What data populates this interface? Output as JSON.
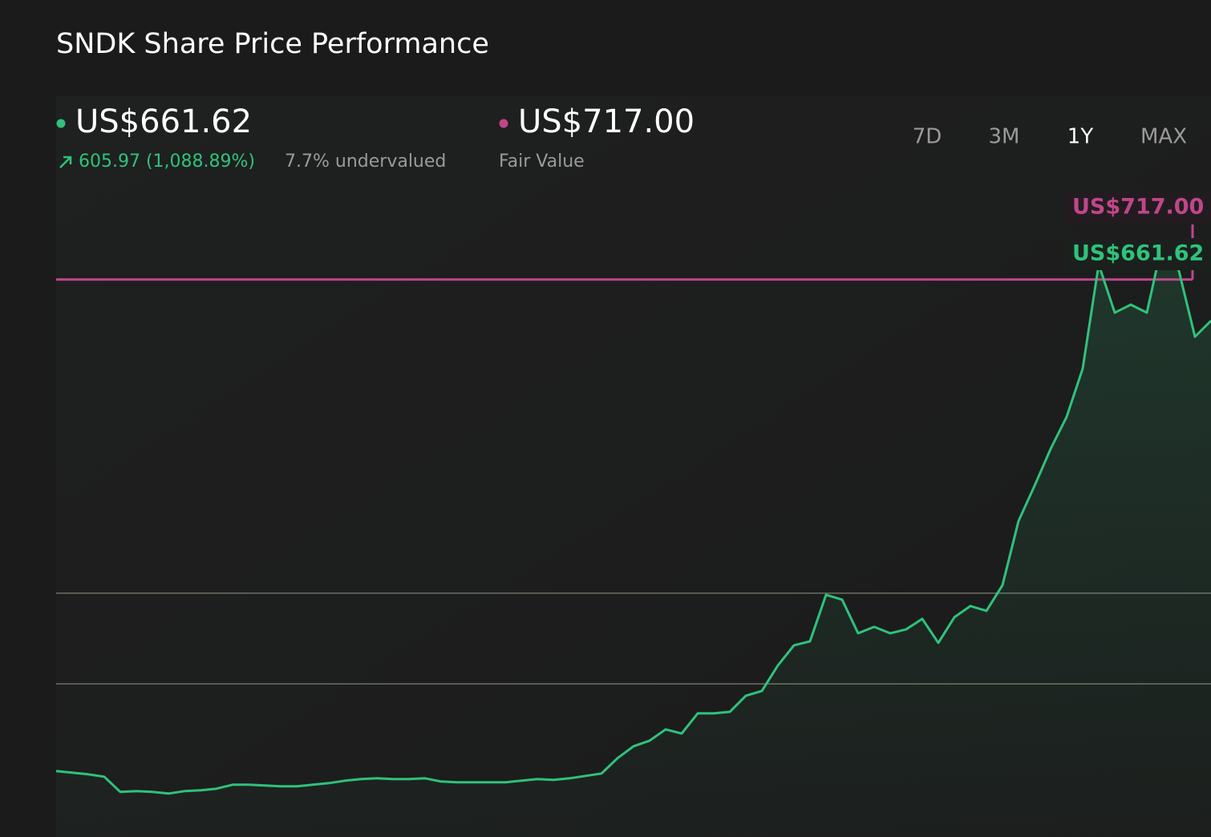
{
  "chart_data": {
    "type": "line",
    "title": "SNDK Share Price Performance",
    "price": {
      "value": 661.62,
      "label": "US$661.62",
      "change": "605.97 (1,088.89%)",
      "valuation": "7.7% undervalued"
    },
    "fair_value": {
      "value": 717,
      "label": "US$717.00",
      "caption": "Fair Value",
      "color": "#c0468a"
    },
    "ranges": [
      "7D",
      "3M",
      "1Y",
      "MAX"
    ],
    "active_range": "1Y",
    "color": "#2fc27b",
    "ylim": [
      -33,
      845
    ],
    "yticks": [
      173,
      295
    ],
    "grid": true,
    "values": [
      55.65,
      53.5,
      51.3,
      48.1,
      27.6,
      28.7,
      27.6,
      25.5,
      28.7,
      29.8,
      32.0,
      37.3,
      37.3,
      36.2,
      35.2,
      35.2,
      37.3,
      39.5,
      42.7,
      44.9,
      46.0,
      44.9,
      44.9,
      46.0,
      41.6,
      40.6,
      40.6,
      40.6,
      40.6,
      42.7,
      44.9,
      43.8,
      46.0,
      49.2,
      52.4,
      73.0,
      89.1,
      96.6,
      111.7,
      106.3,
      133.3,
      133.3,
      135.4,
      157.0,
      163.5,
      197.9,
      224.9,
      230.3,
      292.9,
      286.4,
      241.1,
      249.7,
      241.1,
      246.5,
      260.5,
      228.2,
      262.7,
      277.8,
      271.3,
      305.8,
      392.1,
      439.5,
      489.1,
      532.3,
      597.0,
      737.2,
      672.4,
      683.2,
      672.4,
      769.5,
      728.5,
      640.1,
      661.62
    ]
  }
}
